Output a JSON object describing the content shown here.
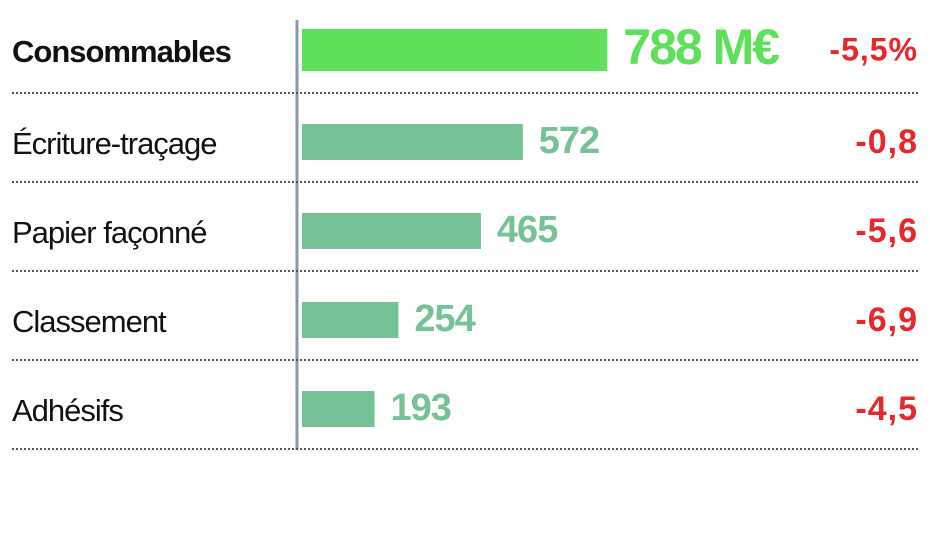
{
  "chart_data": {
    "type": "bar",
    "orientation": "horizontal",
    "categories": [
      "Consommables",
      "Écriture-traçage",
      "Papier façonné",
      "Classement",
      "Adhésifs"
    ],
    "values": [
      788,
      572,
      465,
      254,
      193
    ],
    "value_labels": [
      "788 M€",
      "572",
      "465",
      "254",
      "193"
    ],
    "colors": [
      "#5fe05a",
      "#74c295",
      "#74c295",
      "#74c295",
      "#74c295"
    ],
    "xlim": [
      0,
      800
    ],
    "change": {
      "values": [
        -5.5,
        -0.8,
        -5.6,
        -6.9,
        -4.5
      ],
      "value_labels": [
        "-5,5%",
        "-0,8",
        "-5,6",
        "-6,9",
        "-4,5"
      ],
      "color": "#e8262b"
    }
  }
}
